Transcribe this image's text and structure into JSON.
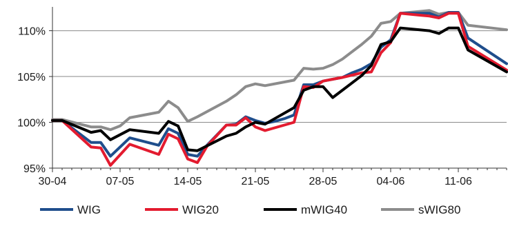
{
  "chart_data": {
    "type": "line",
    "y_tick_labels": [
      "95%",
      "100%",
      "105%",
      "110%"
    ],
    "y_ticks": [
      95,
      100,
      105,
      110
    ],
    "ylim": [
      95,
      112.6
    ],
    "x_tick_labels": [
      "30-04",
      "07-05",
      "14-05",
      "21-05",
      "28-05",
      "04-06",
      "11-06"
    ],
    "x_tick_positions": [
      0,
      7,
      14,
      21,
      28,
      35,
      42
    ],
    "xlim": [
      0,
      47
    ],
    "grid": "horizontal",
    "legend_position": "bottom",
    "series": [
      {
        "name": "WIG",
        "color": "#1f4e8c",
        "x": [
          0,
          1,
          4,
          5,
          6,
          8,
          11,
          12,
          13,
          14,
          15,
          16,
          18,
          19,
          20,
          21,
          22,
          23,
          24,
          25,
          26,
          27,
          28,
          29,
          30,
          31,
          32,
          33,
          34,
          35,
          36,
          39,
          40,
          41,
          42,
          43,
          47
        ],
        "y": [
          100.2,
          100.2,
          97.8,
          97.8,
          96.3,
          98.3,
          97.5,
          99.3,
          98.8,
          96.5,
          96.3,
          97.5,
          99.7,
          99.8,
          100.6,
          100.2,
          99.9,
          100.1,
          100.4,
          100.8,
          104.1,
          104.1,
          104.5,
          104.7,
          104.9,
          105.4,
          105.8,
          106.4,
          108.2,
          109.0,
          111.9,
          111.9,
          111.5,
          112.0,
          112.0,
          109.2,
          106.4
        ]
      },
      {
        "name": "WIG20",
        "color": "#e31b2f",
        "x": [
          0,
          1,
          4,
          5,
          6,
          8,
          11,
          12,
          13,
          14,
          15,
          16,
          18,
          19,
          20,
          21,
          22,
          23,
          25,
          26,
          27,
          28,
          29,
          30,
          32,
          33,
          34,
          35,
          36,
          38,
          39,
          40,
          41,
          42,
          43,
          47
        ],
        "y": [
          100.2,
          100.2,
          97.3,
          97.2,
          95.3,
          97.6,
          96.5,
          98.7,
          98.2,
          96.0,
          95.6,
          97.4,
          99.7,
          99.7,
          100.5,
          99.5,
          99.1,
          99.4,
          100.0,
          103.9,
          103.8,
          104.5,
          104.7,
          104.9,
          105.4,
          105.5,
          107.6,
          108.7,
          111.9,
          111.7,
          111.6,
          111.4,
          111.9,
          111.9,
          108.3,
          105.7
        ]
      },
      {
        "name": "mWIG40",
        "color": "#000000",
        "x": [
          0,
          1,
          4,
          5,
          6,
          8,
          11,
          12,
          13,
          14,
          15,
          18,
          19,
          20,
          21,
          22,
          23,
          25,
          26,
          27,
          28,
          29,
          30,
          32,
          33,
          34,
          35,
          36,
          38,
          39,
          40,
          41,
          42,
          43,
          47
        ],
        "y": [
          100.2,
          100.2,
          98.9,
          99.1,
          98.1,
          99.2,
          98.8,
          100.1,
          99.6,
          97.0,
          96.9,
          98.5,
          98.8,
          99.5,
          100.0,
          99.8,
          100.4,
          101.6,
          103.5,
          103.9,
          103.9,
          102.7,
          103.5,
          105.1,
          106.2,
          108.5,
          108.8,
          110.3,
          110.1,
          110.0,
          109.7,
          110.3,
          110.3,
          107.9,
          105.5
        ]
      },
      {
        "name": "sWIG80",
        "color": "#8c8c8c",
        "x": [
          0,
          1,
          4,
          5,
          6,
          7,
          8,
          11,
          12,
          13,
          14,
          15,
          18,
          19,
          20,
          21,
          22,
          25,
          26,
          27,
          28,
          29,
          30,
          32,
          33,
          34,
          35,
          36,
          38,
          39,
          40,
          41,
          42,
          43,
          47
        ],
        "y": [
          100.3,
          100.3,
          99.5,
          99.5,
          99.2,
          99.6,
          100.5,
          101.1,
          102.3,
          101.6,
          100.1,
          100.6,
          102.3,
          103.0,
          103.9,
          104.2,
          104.0,
          104.6,
          105.9,
          105.8,
          105.9,
          106.3,
          106.9,
          108.5,
          109.4,
          110.8,
          111.0,
          111.9,
          112.1,
          112.2,
          111.8,
          112.0,
          112.0,
          110.6,
          110.1
        ]
      }
    ]
  }
}
